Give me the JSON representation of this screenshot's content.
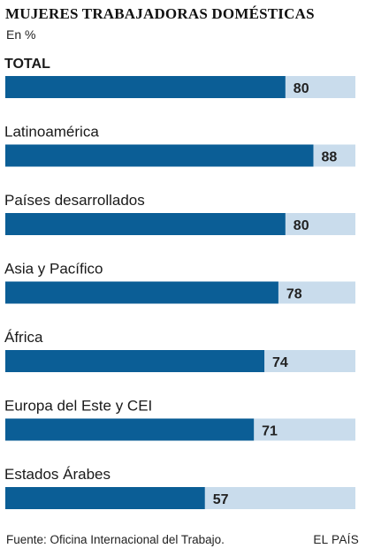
{
  "header": {
    "title": "MUJERES TRABAJADORAS DOMÉSTICAS",
    "subtitle": "En %"
  },
  "footer": {
    "source": "Fuente: Oficina Internacional del Trabajo.",
    "brand": "EL PAÍS"
  },
  "colors": {
    "bar": "#0b5e96",
    "track": "#c9dcec"
  },
  "chart_data": {
    "type": "bar",
    "orientation": "horizontal",
    "title": "MUJERES TRABAJADORAS DOMÉSTICAS",
    "subtitle": "En %",
    "categories": [
      "TOTAL",
      "Latinoamérica",
      "Países desarrollados",
      "Asia y Pacífico",
      "África",
      "Europa del Este y CEI",
      "Estados Árabes"
    ],
    "values": [
      80,
      88,
      80,
      78,
      74,
      71,
      57
    ],
    "xlim": [
      0,
      100
    ],
    "grid": false,
    "legend": "none"
  }
}
